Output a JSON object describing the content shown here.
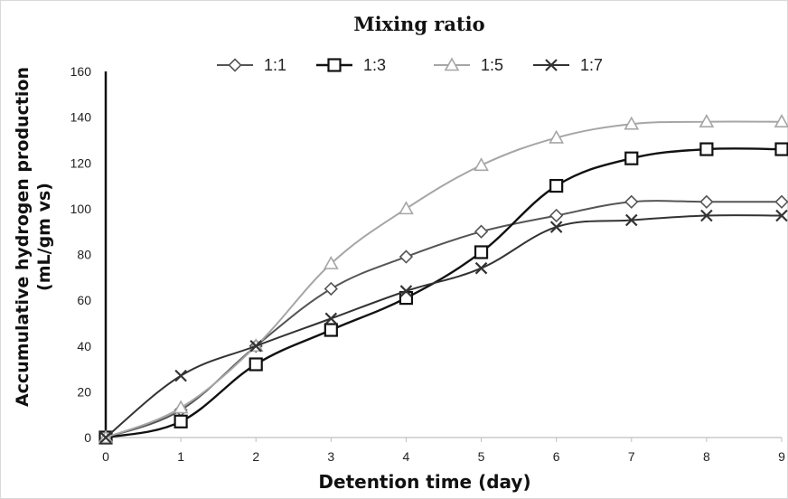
{
  "chart_data": {
    "type": "line",
    "title": "Mixing ratio",
    "xlabel": "Detention time (day)",
    "ylabel": "Accumulative hydrogen production (mL/gm vs)",
    "ylabel_lines": [
      "Accumulative hydrogen production",
      "(mL/gm vs)"
    ],
    "x": [
      0,
      1,
      2,
      3,
      4,
      5,
      6,
      7,
      8,
      9
    ],
    "xlim": [
      0,
      9
    ],
    "ylim": [
      0,
      160
    ],
    "xticks": [
      0,
      1,
      2,
      3,
      4,
      5,
      6,
      7,
      8,
      9
    ],
    "yticks": [
      0,
      20,
      40,
      60,
      80,
      100,
      120,
      140,
      160
    ],
    "grid": false,
    "legend_position": "top",
    "series": [
      {
        "name": "1:1",
        "marker": "diamond",
        "color": "#555555",
        "values": [
          0,
          12,
          40,
          65,
          79,
          90,
          97,
          103,
          103,
          103
        ]
      },
      {
        "name": "1:3",
        "marker": "square",
        "color": "#111111",
        "values": [
          0,
          7,
          32,
          47,
          61,
          81,
          110,
          122,
          126,
          126
        ]
      },
      {
        "name": "1:5",
        "marker": "triangle",
        "color": "#a6a6a6",
        "values": [
          0,
          13,
          40,
          76,
          100,
          119,
          131,
          137,
          138,
          138
        ]
      },
      {
        "name": "1:7",
        "marker": "x",
        "color": "#333333",
        "values": [
          0,
          27,
          40,
          52,
          64,
          74,
          92,
          95,
          97,
          97
        ]
      }
    ]
  }
}
